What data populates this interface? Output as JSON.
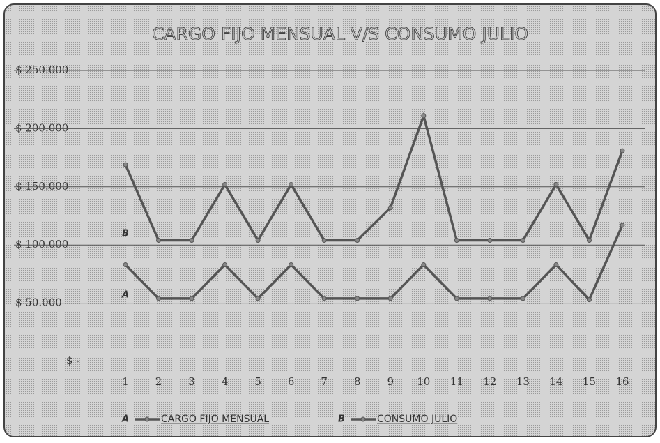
{
  "chart_data": {
    "type": "line",
    "title": "CARGO FIJO MENSUAL V/S CONSUMO JULIO",
    "categories": [
      "1",
      "2",
      "3",
      "4",
      "5",
      "6",
      "7",
      "8",
      "9",
      "10",
      "11",
      "12",
      "13",
      "14",
      "15",
      "16"
    ],
    "series": [
      {
        "name": "CARGO FIJO MENSUAL",
        "tag": "A",
        "color": "#555555",
        "values": [
          83000,
          54000,
          54000,
          83000,
          54000,
          83000,
          54000,
          54000,
          54000,
          83000,
          54000,
          54000,
          54000,
          83000,
          53000,
          117000
        ]
      },
      {
        "name": "CONSUMO JULIO",
        "tag": "B",
        "color": "#555555",
        "values": [
          169000,
          104000,
          104000,
          152000,
          104000,
          152000,
          104000,
          104000,
          132000,
          211000,
          104000,
          104000,
          104000,
          152000,
          104000,
          181000
        ]
      }
    ],
    "ylim": [
      0,
      250000
    ],
    "yticks": [
      {
        "value": 0,
        "label": "$ -"
      },
      {
        "value": 50000,
        "label": "$ 50.000"
      },
      {
        "value": 100000,
        "label": "$ 100.000"
      },
      {
        "value": 150000,
        "label": "$ 150.000"
      },
      {
        "value": 200000,
        "label": "$ 200.000"
      },
      {
        "value": 250000,
        "label": "$ 250.000"
      }
    ],
    "grid": true,
    "legend": "bottom"
  }
}
